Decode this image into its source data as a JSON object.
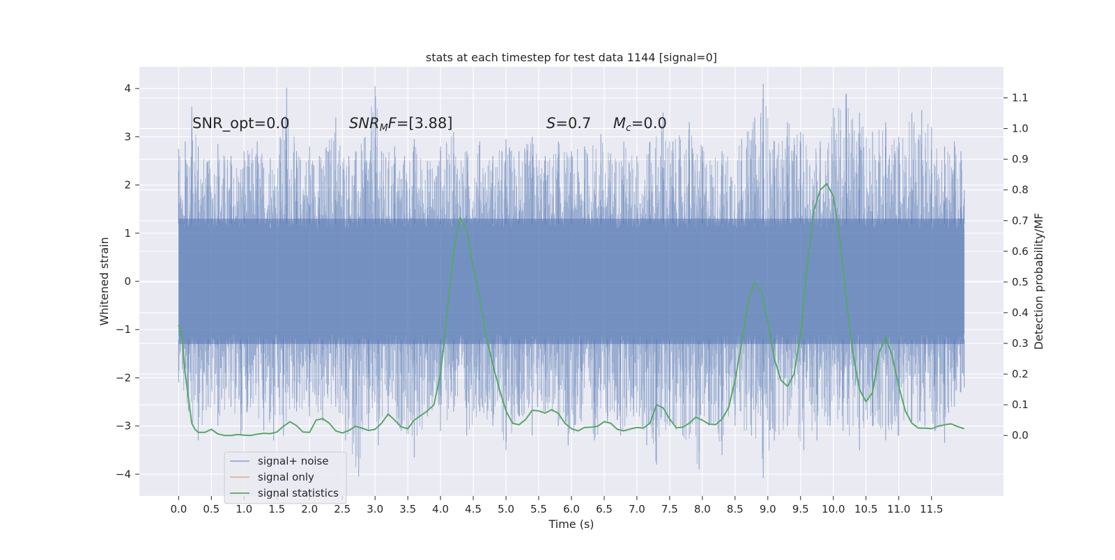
{
  "chart_data": {
    "type": "line",
    "title": "stats at each timestep for test data 1144 [signal=0]",
    "xlabel": "Time (s)",
    "ylabel_left": "Whitened strain",
    "ylabel_right": "Detection probability/MF",
    "xlim": [
      -0.6,
      12.6
    ],
    "ylim_left": [
      -4.45,
      4.45
    ],
    "ylim_right": [
      -0.197,
      1.201
    ],
    "x_ticks": [
      0.0,
      0.5,
      1.0,
      1.5,
      2.0,
      2.5,
      3.0,
      3.5,
      4.0,
      4.5,
      5.0,
      5.5,
      6.0,
      6.5,
      7.0,
      7.5,
      8.0,
      8.5,
      9.0,
      9.5,
      10.0,
      10.5,
      11.0,
      11.5
    ],
    "x_tick_labels": [
      "0.0",
      "0.5",
      "1.0",
      "1.5",
      "2.0",
      "2.5",
      "3.0",
      "3.5",
      "4.0",
      "4.5",
      "5.0",
      "5.5",
      "6.0",
      "6.5",
      "7.0",
      "7.5",
      "8.0",
      "8.5",
      "9.0",
      "9.5",
      "10.0",
      "10.5",
      "11.0",
      "11.5"
    ],
    "y_left_ticks": [
      4,
      3,
      2,
      1,
      0,
      -1,
      -2,
      -3,
      -4
    ],
    "y_left_tick_labels": [
      "4",
      "3",
      "2",
      "1",
      "0",
      "−1",
      "−2",
      "−3",
      "−4"
    ],
    "y_right_ticks": [
      1.1,
      1.0,
      0.9,
      0.8,
      0.7,
      0.6,
      0.5,
      0.4,
      0.3,
      0.2,
      0.1,
      0.0
    ],
    "y_right_tick_labels": [
      "1.1",
      "1.0",
      "0.9",
      "0.8",
      "0.7",
      "0.6",
      "0.5",
      "0.4",
      "0.3",
      "0.2",
      "0.1",
      "0.0"
    ],
    "grid": true,
    "legend_position": "lower-left",
    "annotations": {
      "snr_opt": "SNR_opt=0.0",
      "snr_mf_name": "SNR",
      "snr_mf_sub": "M",
      "snr_mf_italic": "F",
      "snr_mf_value": "=[3.88]",
      "s_name": "S",
      "s_value": "=0.7",
      "mc_name": "M",
      "mc_sub": "c",
      "mc_value": "=0.0"
    },
    "series": [
      {
        "name": "signal+ noise",
        "axis": "left",
        "color": "#4c72b0",
        "x_range": [
          0.0,
          12.0
        ],
        "core_band": [
          -1.3,
          1.3
        ],
        "upper_envelope": [
          [
            0.0,
            2.75
          ],
          [
            0.1,
            2.9
          ],
          [
            0.2,
            3.62
          ],
          [
            0.3,
            2.8
          ],
          [
            0.45,
            2.5
          ],
          [
            0.6,
            2.85
          ],
          [
            0.8,
            2.6
          ],
          [
            1.0,
            2.7
          ],
          [
            1.2,
            2.9
          ],
          [
            1.4,
            2.55
          ],
          [
            1.55,
            3.0
          ],
          [
            1.65,
            4.02
          ],
          [
            1.8,
            2.7
          ],
          [
            2.0,
            2.8
          ],
          [
            2.15,
            2.6
          ],
          [
            2.4,
            3.4
          ],
          [
            2.6,
            2.6
          ],
          [
            2.85,
            3.0
          ],
          [
            3.0,
            4.05
          ],
          [
            3.1,
            2.7
          ],
          [
            3.3,
            2.8
          ],
          [
            3.45,
            2.6
          ],
          [
            3.6,
            2.95
          ],
          [
            3.8,
            2.5
          ],
          [
            4.0,
            2.8
          ],
          [
            4.2,
            3.1
          ],
          [
            4.4,
            2.7
          ],
          [
            4.6,
            2.9
          ],
          [
            4.8,
            2.6
          ],
          [
            5.0,
            2.95
          ],
          [
            5.2,
            2.7
          ],
          [
            5.4,
            3.0
          ],
          [
            5.6,
            2.6
          ],
          [
            5.8,
            2.9
          ],
          [
            6.0,
            2.7
          ],
          [
            6.2,
            2.8
          ],
          [
            6.45,
            3.05
          ],
          [
            6.6,
            2.65
          ],
          [
            6.8,
            2.9
          ],
          [
            7.0,
            2.6
          ],
          [
            7.2,
            2.9
          ],
          [
            7.4,
            3.5
          ],
          [
            7.55,
            2.9
          ],
          [
            7.8,
            3.3
          ],
          [
            8.0,
            2.8
          ],
          [
            8.3,
            2.7
          ],
          [
            8.6,
            2.95
          ],
          [
            8.8,
            3.4
          ],
          [
            8.93,
            4.1
          ],
          [
            9.1,
            2.9
          ],
          [
            9.3,
            3.3
          ],
          [
            9.5,
            3.1
          ],
          [
            9.8,
            2.9
          ],
          [
            10.0,
            3.6
          ],
          [
            10.2,
            3.9
          ],
          [
            10.4,
            3.5
          ],
          [
            10.6,
            3.1
          ],
          [
            10.8,
            3.3
          ],
          [
            11.0,
            3.0
          ],
          [
            11.2,
            3.5
          ],
          [
            11.35,
            3.55
          ],
          [
            11.5,
            3.2
          ],
          [
            11.7,
            2.8
          ],
          [
            11.85,
            2.9
          ],
          [
            11.95,
            2.7
          ],
          [
            12.0,
            1.9
          ]
        ],
        "lower_envelope": [
          [
            0.0,
            -2.1
          ],
          [
            0.15,
            -2.7
          ],
          [
            0.3,
            -3.3
          ],
          [
            0.45,
            -2.6
          ],
          [
            0.6,
            -3.0
          ],
          [
            0.8,
            -2.6
          ],
          [
            0.95,
            -3.2
          ],
          [
            1.05,
            -2.7
          ],
          [
            1.3,
            -3.1
          ],
          [
            1.45,
            -3.3
          ],
          [
            1.6,
            -3.2
          ],
          [
            1.8,
            -2.7
          ],
          [
            2.0,
            -2.8
          ],
          [
            2.2,
            -2.9
          ],
          [
            2.4,
            -2.6
          ],
          [
            2.55,
            -3.3
          ],
          [
            2.75,
            -4.05
          ],
          [
            2.9,
            -3.1
          ],
          [
            3.05,
            -3.4
          ],
          [
            3.2,
            -2.8
          ],
          [
            3.4,
            -3.1
          ],
          [
            3.6,
            -3.65
          ],
          [
            3.8,
            -2.8
          ],
          [
            4.0,
            -3.1
          ],
          [
            4.2,
            -2.7
          ],
          [
            4.4,
            -3.2
          ],
          [
            4.6,
            -2.7
          ],
          [
            4.8,
            -3.0
          ],
          [
            5.0,
            -3.5
          ],
          [
            5.2,
            -2.8
          ],
          [
            5.4,
            -3.2
          ],
          [
            5.6,
            -2.7
          ],
          [
            5.8,
            -3.0
          ],
          [
            5.95,
            -3.4
          ],
          [
            6.15,
            -2.9
          ],
          [
            6.35,
            -3.3
          ],
          [
            6.55,
            -2.9
          ],
          [
            6.75,
            -3.2
          ],
          [
            6.95,
            -2.8
          ],
          [
            7.15,
            -3.4
          ],
          [
            7.3,
            -3.8
          ],
          [
            7.5,
            -3.0
          ],
          [
            7.7,
            -3.2
          ],
          [
            7.95,
            -3.9
          ],
          [
            8.1,
            -3.0
          ],
          [
            8.3,
            -3.6
          ],
          [
            8.5,
            -3.0
          ],
          [
            8.75,
            -3.2
          ],
          [
            8.93,
            -4.08
          ],
          [
            9.1,
            -3.3
          ],
          [
            9.3,
            -3.0
          ],
          [
            9.55,
            -3.5
          ],
          [
            9.75,
            -3.3
          ],
          [
            9.95,
            -3.0
          ],
          [
            10.15,
            -3.1
          ],
          [
            10.4,
            -3.5
          ],
          [
            10.6,
            -3.0
          ],
          [
            10.8,
            -3.3
          ],
          [
            11.0,
            -3.2
          ],
          [
            11.2,
            -2.9
          ],
          [
            11.4,
            -3.0
          ],
          [
            11.55,
            -3.1
          ],
          [
            11.7,
            -3.35
          ],
          [
            11.85,
            -2.6
          ],
          [
            11.95,
            -2.3
          ],
          [
            12.0,
            -2.2
          ]
        ]
      },
      {
        "name": "signal only",
        "axis": "left",
        "color": "#dd8452",
        "points": [
          [
            0.0,
            0.0
          ],
          [
            12.0,
            0.0
          ]
        ]
      },
      {
        "name": "signal statistics",
        "axis": "right",
        "color": "#55a868",
        "points": [
          [
            0.0,
            0.36
          ],
          [
            0.05,
            0.32
          ],
          [
            0.1,
            0.2
          ],
          [
            0.15,
            0.12
          ],
          [
            0.2,
            0.04
          ],
          [
            0.25,
            0.02
          ],
          [
            0.3,
            0.01
          ],
          [
            0.4,
            0.01
          ],
          [
            0.5,
            0.02
          ],
          [
            0.6,
            0.005
          ],
          [
            0.7,
            0.0
          ],
          [
            0.8,
            0.0
          ],
          [
            0.9,
            0.003
          ],
          [
            1.0,
            0.001
          ],
          [
            1.1,
            0.0
          ],
          [
            1.2,
            0.004
          ],
          [
            1.3,
            0.007
          ],
          [
            1.4,
            0.006
          ],
          [
            1.5,
            0.011
          ],
          [
            1.6,
            0.03
          ],
          [
            1.7,
            0.045
          ],
          [
            1.8,
            0.032
          ],
          [
            1.9,
            0.011
          ],
          [
            2.0,
            0.01
          ],
          [
            2.1,
            0.05
          ],
          [
            2.2,
            0.055
          ],
          [
            2.3,
            0.04
          ],
          [
            2.4,
            0.015
          ],
          [
            2.5,
            0.008
          ],
          [
            2.6,
            0.016
          ],
          [
            2.7,
            0.03
          ],
          [
            2.8,
            0.024
          ],
          [
            2.9,
            0.016
          ],
          [
            3.0,
            0.02
          ],
          [
            3.1,
            0.04
          ],
          [
            3.2,
            0.07
          ],
          [
            3.3,
            0.05
          ],
          [
            3.4,
            0.028
          ],
          [
            3.5,
            0.022
          ],
          [
            3.6,
            0.05
          ],
          [
            3.7,
            0.065
          ],
          [
            3.8,
            0.08
          ],
          [
            3.9,
            0.1
          ],
          [
            4.0,
            0.2
          ],
          [
            4.1,
            0.4
          ],
          [
            4.2,
            0.6
          ],
          [
            4.3,
            0.71
          ],
          [
            4.35,
            0.69
          ],
          [
            4.4,
            0.67
          ],
          [
            4.5,
            0.55
          ],
          [
            4.6,
            0.45
          ],
          [
            4.7,
            0.32
          ],
          [
            4.8,
            0.23
          ],
          [
            4.9,
            0.15
          ],
          [
            5.0,
            0.08
          ],
          [
            5.1,
            0.04
          ],
          [
            5.2,
            0.035
          ],
          [
            5.3,
            0.052
          ],
          [
            5.4,
            0.082
          ],
          [
            5.5,
            0.08
          ],
          [
            5.6,
            0.073
          ],
          [
            5.7,
            0.084
          ],
          [
            5.8,
            0.072
          ],
          [
            5.9,
            0.04
          ],
          [
            6.0,
            0.022
          ],
          [
            6.1,
            0.015
          ],
          [
            6.2,
            0.026
          ],
          [
            6.3,
            0.027
          ],
          [
            6.4,
            0.03
          ],
          [
            6.5,
            0.045
          ],
          [
            6.6,
            0.04
          ],
          [
            6.7,
            0.02
          ],
          [
            6.8,
            0.015
          ],
          [
            6.9,
            0.021
          ],
          [
            7.0,
            0.026
          ],
          [
            7.1,
            0.024
          ],
          [
            7.2,
            0.04
          ],
          [
            7.3,
            0.1
          ],
          [
            7.4,
            0.09
          ],
          [
            7.5,
            0.054
          ],
          [
            7.6,
            0.025
          ],
          [
            7.7,
            0.027
          ],
          [
            7.8,
            0.04
          ],
          [
            7.9,
            0.06
          ],
          [
            8.0,
            0.05
          ],
          [
            8.1,
            0.037
          ],
          [
            8.2,
            0.035
          ],
          [
            8.3,
            0.053
          ],
          [
            8.4,
            0.09
          ],
          [
            8.5,
            0.18
          ],
          [
            8.6,
            0.3
          ],
          [
            8.7,
            0.44
          ],
          [
            8.8,
            0.5
          ],
          [
            8.9,
            0.47
          ],
          [
            9.0,
            0.37
          ],
          [
            9.1,
            0.25
          ],
          [
            9.2,
            0.18
          ],
          [
            9.3,
            0.16
          ],
          [
            9.4,
            0.2
          ],
          [
            9.5,
            0.33
          ],
          [
            9.6,
            0.55
          ],
          [
            9.7,
            0.73
          ],
          [
            9.8,
            0.8
          ],
          [
            9.9,
            0.82
          ],
          [
            10.0,
            0.78
          ],
          [
            10.1,
            0.64
          ],
          [
            10.2,
            0.44
          ],
          [
            10.3,
            0.27
          ],
          [
            10.4,
            0.15
          ],
          [
            10.5,
            0.11
          ],
          [
            10.6,
            0.14
          ],
          [
            10.7,
            0.27
          ],
          [
            10.8,
            0.32
          ],
          [
            10.9,
            0.26
          ],
          [
            11.0,
            0.16
          ],
          [
            11.1,
            0.08
          ],
          [
            11.2,
            0.04
          ],
          [
            11.3,
            0.024
          ],
          [
            11.4,
            0.024
          ],
          [
            11.5,
            0.022
          ],
          [
            11.6,
            0.03
          ],
          [
            11.7,
            0.035
          ],
          [
            11.8,
            0.038
          ],
          [
            11.9,
            0.029
          ],
          [
            12.0,
            0.022
          ]
        ]
      }
    ]
  }
}
